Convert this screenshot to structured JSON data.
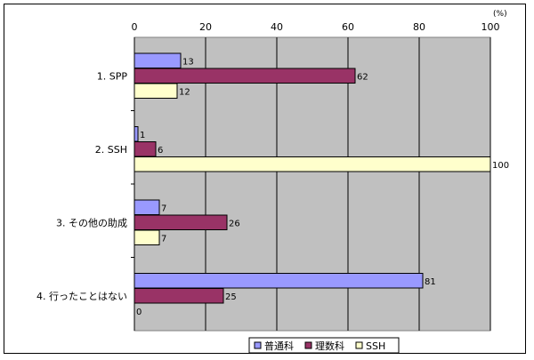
{
  "chart_data": {
    "type": "bar",
    "orientation": "horizontal",
    "unit_label": "(%)",
    "xlim": [
      0,
      100
    ],
    "x_ticks": [
      0,
      20,
      40,
      60,
      80,
      100
    ],
    "x_tick_labels": [
      "0",
      "20",
      "40",
      "60",
      "80",
      "100"
    ],
    "grid": true,
    "legend_position": "bottom",
    "categories": [
      "1. SPP",
      "2. SSH",
      "3. その他の助成",
      "4. 行ったことはない"
    ],
    "series": [
      {
        "name": "普通科",
        "color": "#9999ff",
        "values": [
          13,
          1,
          7,
          81
        ]
      },
      {
        "name": "理数科",
        "color": "#993366",
        "values": [
          62,
          6,
          26,
          25
        ]
      },
      {
        "name": "SSH",
        "color": "#ffffcc",
        "values": [
          12,
          100,
          7,
          0
        ]
      }
    ],
    "plot_background": "#c0c0c0"
  }
}
